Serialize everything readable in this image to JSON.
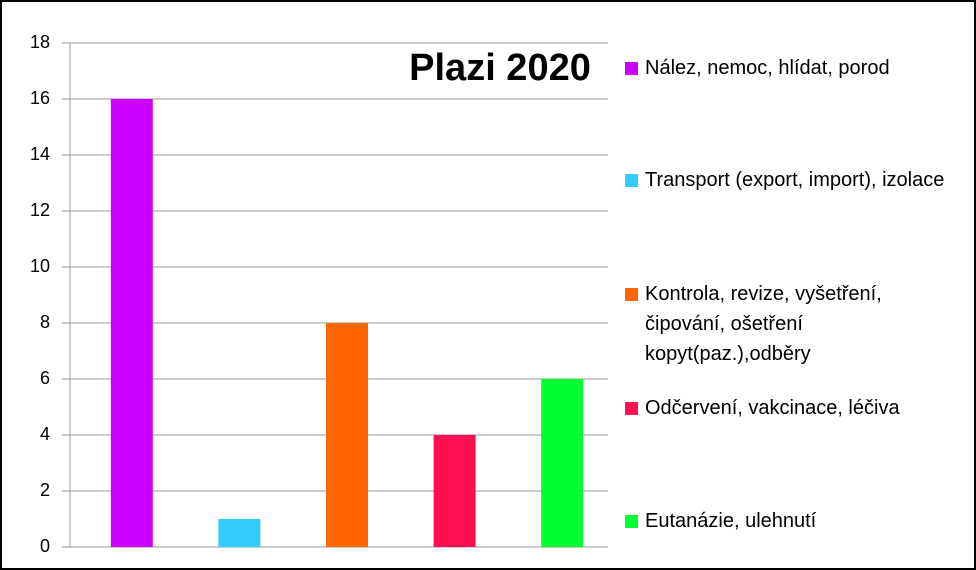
{
  "chart_data": {
    "type": "bar",
    "title": "Plazi 2020",
    "categories": [
      "Nález, nemoc, hlídat, porod",
      "Transport (export, import), izolace",
      "Kontrola, revize, vyšetření, čipování, ošetření kopyt(paz.),odběry",
      "Odčervení, vakcinace, léčiva",
      "Eutanázie, ulehnutí"
    ],
    "values": [
      16,
      1,
      8,
      4,
      6
    ],
    "colors": [
      "#cc00ff",
      "#33ccff",
      "#ff6600",
      "#ff0f50",
      "#00ff33"
    ],
    "ylim": [
      0,
      18
    ],
    "yticks": [
      0,
      2,
      4,
      6,
      8,
      10,
      12,
      14,
      16,
      18
    ],
    "grid": true
  }
}
